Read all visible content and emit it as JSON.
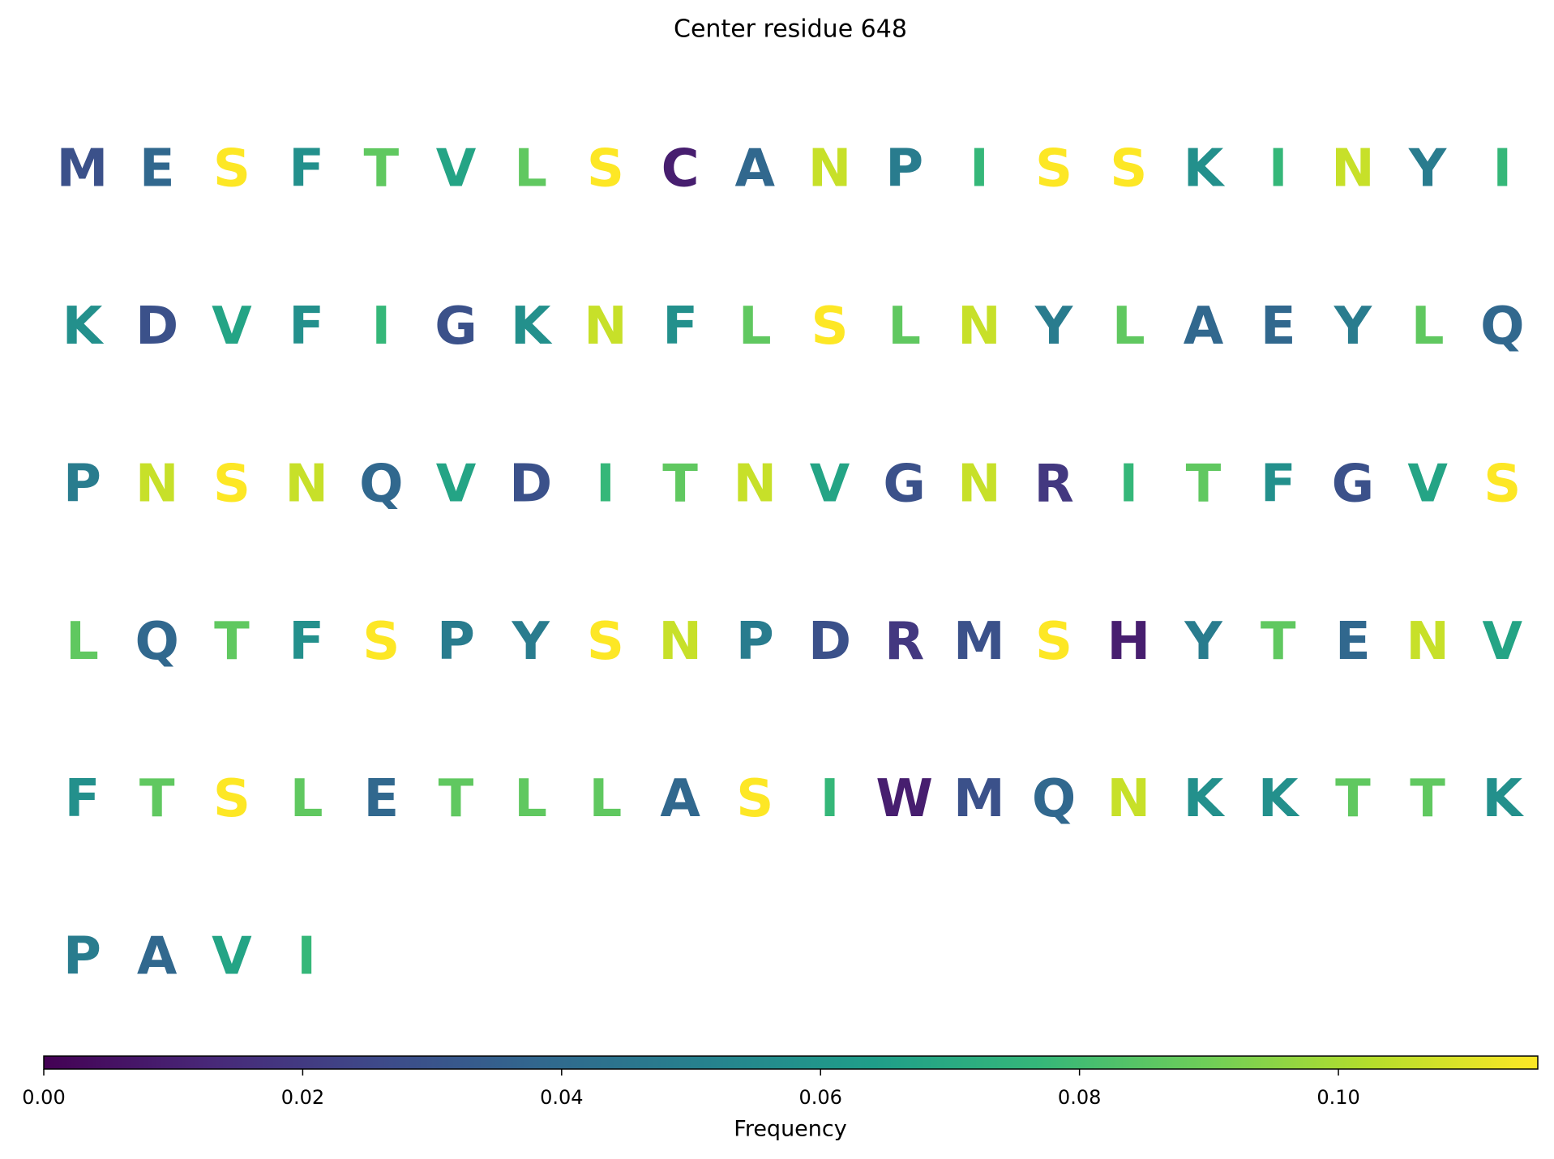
{
  "chart_data": {
    "type": "heatmap",
    "title": "Center residue 648",
    "residues": [
      "M",
      "E",
      "S",
      "F",
      "T",
      "V",
      "L",
      "S",
      "C",
      "A",
      "N",
      "P",
      "I",
      "S",
      "S",
      "K",
      "I",
      "N",
      "Y",
      "I",
      "K",
      "D",
      "V",
      "F",
      "I",
      "G",
      "K",
      "N",
      "F",
      "L",
      "S",
      "L",
      "N",
      "Y",
      "L",
      "A",
      "E",
      "Y",
      "L",
      "Q",
      "P",
      "N",
      "S",
      "N",
      "Q",
      "V",
      "D",
      "I",
      "T",
      "N",
      "V",
      "G",
      "N",
      "R",
      "I",
      "T",
      "F",
      "G",
      "V",
      "S",
      "L",
      "Q",
      "T",
      "F",
      "S",
      "P",
      "Y",
      "S",
      "N",
      "P",
      "D",
      "R",
      "M",
      "S",
      "H",
      "Y",
      "T",
      "E",
      "N",
      "V",
      "F",
      "T",
      "S",
      "L",
      "E",
      "T",
      "L",
      "L",
      "A",
      "S",
      "I",
      "W",
      "M",
      "Q",
      "N",
      "K",
      "K",
      "T",
      "T",
      "K",
      "P",
      "A",
      "V",
      "I"
    ],
    "values": [
      0.0288,
      0.0385,
      0.1154,
      0.0577,
      0.0865,
      0.0673,
      0.0865,
      0.1154,
      0.0096,
      0.0385,
      0.1058,
      0.0481,
      0.0769,
      0.1154,
      0.1154,
      0.0577,
      0.0769,
      0.1058,
      0.0481,
      0.0769,
      0.0577,
      0.0288,
      0.0673,
      0.0577,
      0.0769,
      0.0288,
      0.0577,
      0.1058,
      0.0577,
      0.0865,
      0.1154,
      0.0865,
      0.1058,
      0.0481,
      0.0865,
      0.0385,
      0.0385,
      0.0481,
      0.0865,
      0.0385,
      0.0481,
      0.1058,
      0.1154,
      0.1058,
      0.0385,
      0.0673,
      0.0288,
      0.0769,
      0.0865,
      0.1058,
      0.0673,
      0.0288,
      0.1058,
      0.0192,
      0.0769,
      0.0865,
      0.0577,
      0.0288,
      0.0673,
      0.1154,
      0.0865,
      0.0385,
      0.0865,
      0.0577,
      0.1154,
      0.0481,
      0.0481,
      0.1154,
      0.1058,
      0.0481,
      0.0288,
      0.0192,
      0.0288,
      0.1154,
      0.0096,
      0.0481,
      0.0865,
      0.0385,
      0.1058,
      0.0673,
      0.0577,
      0.0865,
      0.1154,
      0.0865,
      0.0385,
      0.0865,
      0.0865,
      0.0865,
      0.0385,
      0.1154,
      0.0769,
      0.0096,
      0.0288,
      0.0385,
      0.1058,
      0.0577,
      0.0577,
      0.0865,
      0.0865,
      0.0577,
      0.0481,
      0.0385,
      0.0673,
      0.0769
    ],
    "colormap": "viridis",
    "clim": [
      0,
      0.1154
    ],
    "cticks": [
      {
        "value": 0,
        "label": "0.00"
      },
      0.02,
      0.04,
      0.06,
      0.08,
      {
        "value": 0.1,
        "label": "0.10"
      }
    ],
    "colorbar_label": "Frequency"
  }
}
